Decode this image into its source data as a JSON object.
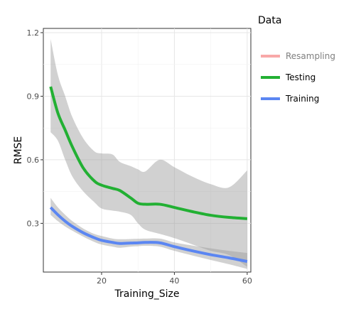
{
  "chart_data": {
    "type": "line",
    "xlabel": "Training_Size",
    "ylabel": "RMSE",
    "xlim": [
      4,
      61
    ],
    "ylim": [
      0.07,
      1.22
    ],
    "xticks": [
      20,
      40,
      60
    ],
    "yticks": [
      0.3,
      0.6,
      0.9,
      1.2
    ],
    "ytick_labels": [
      "0.3",
      "0.6",
      "0.9",
      "1.2"
    ],
    "grid": true,
    "legend": {
      "title": "Data",
      "position": "right"
    },
    "series": [
      {
        "name": "Resampling",
        "color": "#f8a8a8",
        "x": [],
        "y": [],
        "band_low": [],
        "band_high": []
      },
      {
        "name": "Testing",
        "color": "#22b033",
        "x": [
          6,
          8,
          10,
          12,
          15,
          18,
          20,
          23,
          25,
          28,
          30,
          32,
          36,
          40,
          45,
          50,
          55,
          60
        ],
        "y": [
          0.945,
          0.82,
          0.74,
          0.66,
          0.56,
          0.5,
          0.48,
          0.465,
          0.455,
          0.42,
          0.395,
          0.39,
          0.39,
          0.375,
          0.355,
          0.338,
          0.328,
          0.322
        ],
        "band_low": [
          0.73,
          0.69,
          0.6,
          0.52,
          0.45,
          0.4,
          0.37,
          0.36,
          0.355,
          0.34,
          0.3,
          0.27,
          0.25,
          0.23,
          0.2,
          0.17,
          0.15,
          0.095
        ],
        "band_high": [
          1.17,
          1.0,
          0.9,
          0.8,
          0.7,
          0.64,
          0.63,
          0.625,
          0.59,
          0.57,
          0.555,
          0.545,
          0.6,
          0.565,
          0.52,
          0.485,
          0.47,
          0.55
        ]
      },
      {
        "name": "Training",
        "color": "#5b86f2",
        "x": [
          6,
          8,
          10,
          12,
          15,
          18,
          20,
          23,
          25,
          28,
          30,
          32,
          36,
          40,
          45,
          50,
          55,
          60
        ],
        "y": [
          0.375,
          0.34,
          0.31,
          0.285,
          0.255,
          0.232,
          0.22,
          0.21,
          0.205,
          0.207,
          0.208,
          0.21,
          0.208,
          0.19,
          0.17,
          0.152,
          0.137,
          0.12
        ],
        "band_low": [
          0.34,
          0.31,
          0.285,
          0.265,
          0.237,
          0.212,
          0.2,
          0.19,
          0.185,
          0.19,
          0.192,
          0.194,
          0.19,
          0.17,
          0.148,
          0.127,
          0.107,
          0.085
        ],
        "band_high": [
          0.42,
          0.375,
          0.34,
          0.31,
          0.275,
          0.25,
          0.24,
          0.228,
          0.225,
          0.226,
          0.227,
          0.228,
          0.228,
          0.21,
          0.195,
          0.182,
          0.17,
          0.16
        ]
      }
    ]
  }
}
